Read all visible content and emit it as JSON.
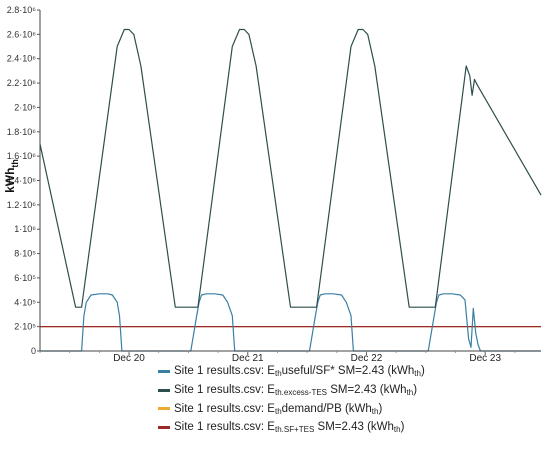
{
  "chart_data": {
    "type": "line",
    "ylabel": "kWh",
    "ylabel_sub": "th",
    "y_ticks": [
      {
        "v": 0,
        "label": "0"
      },
      {
        "v": 200000,
        "label": "2·10⁵"
      },
      {
        "v": 400000,
        "label": "4·10⁵"
      },
      {
        "v": 600000,
        "label": "6·10⁵"
      },
      {
        "v": 800000,
        "label": "8·10⁵"
      },
      {
        "v": 1000000,
        "label": "1·10⁶"
      },
      {
        "v": 1200000,
        "label": "1.2·10⁶"
      },
      {
        "v": 1400000,
        "label": "1.4·10⁶"
      },
      {
        "v": 1600000,
        "label": "1.6·10⁶"
      },
      {
        "v": 1800000,
        "label": "1.8·10⁶"
      },
      {
        "v": 2000000,
        "label": "2·10⁶"
      },
      {
        "v": 2200000,
        "label": "2.2·10⁶"
      },
      {
        "v": 2400000,
        "label": "2.4·10⁶"
      },
      {
        "v": 2600000,
        "label": "2.6·10⁶"
      },
      {
        "v": 2800000,
        "label": "2.8·10⁶"
      }
    ],
    "ylim": [
      0,
      2800000
    ],
    "x_ticks": [
      {
        "x": 20,
        "label": "Dec 20"
      },
      {
        "x": 21,
        "label": "Dec 21"
      },
      {
        "x": 22,
        "label": "Dec 22"
      },
      {
        "x": 23,
        "label": "Dec 23"
      }
    ],
    "xlim": [
      19.25,
      23.47
    ],
    "series": [
      {
        "legend": [
          {
            "t": "Site 1 results.csv: E"
          },
          {
            "t": "th",
            "sub": true
          },
          {
            "t": "useful/SF* SM=2.43   (kWh"
          },
          {
            "t": "th",
            "sub": true
          },
          {
            "t": ")"
          }
        ],
        "color": "#3a7fa3",
        "x": [
          19.25,
          19.6,
          19.62,
          19.64,
          19.68,
          19.75,
          19.82,
          19.86,
          19.9,
          19.92,
          19.94,
          19.96,
          20.3,
          20.52,
          20.57,
          20.59,
          20.61,
          20.65,
          20.72,
          20.79,
          20.83,
          20.87,
          20.89,
          20.91,
          20.93,
          21.3,
          21.52,
          21.57,
          21.59,
          21.61,
          21.65,
          21.72,
          21.79,
          21.83,
          21.87,
          21.89,
          21.91,
          21.93,
          22.3,
          22.52,
          22.57,
          22.59,
          22.61,
          22.65,
          22.72,
          22.79,
          22.83,
          22.86,
          22.88,
          22.9,
          22.92,
          22.94,
          22.96,
          22.98,
          23.47
        ],
        "y": [
          0,
          0,
          290000,
          400000,
          460000,
          470000,
          470000,
          460000,
          400000,
          290000,
          0,
          0,
          0,
          0,
          290000,
          400000,
          460000,
          470000,
          470000,
          460000,
          400000,
          290000,
          0,
          0,
          0,
          0,
          0,
          290000,
          400000,
          460000,
          470000,
          470000,
          460000,
          400000,
          290000,
          0,
          0,
          0,
          0,
          0,
          290000,
          400000,
          460000,
          470000,
          470000,
          460000,
          420000,
          100000,
          30000,
          350000,
          150000,
          50000,
          0,
          0,
          0
        ]
      },
      {
        "legend": [
          {
            "t": "Site 1 results.csv: E"
          },
          {
            "t": "th.excess-TES",
            "sub": true
          },
          {
            "t": " SM=2.43 (kWh"
          },
          {
            "t": "th",
            "sub": true
          },
          {
            "t": ")"
          }
        ],
        "color": "#2d4f4c",
        "x": [
          19.25,
          19.55,
          19.6,
          19.9,
          19.96,
          20.0,
          20.04,
          20.1,
          20.39,
          20.53,
          20.58,
          20.87,
          20.93,
          20.97,
          21.01,
          21.07,
          21.36,
          21.53,
          21.58,
          21.87,
          21.93,
          21.97,
          22.01,
          22.07,
          22.36,
          22.53,
          22.58,
          22.84,
          22.87,
          22.89,
          22.91,
          22.93,
          23.47
        ],
        "y": [
          1700000,
          360000,
          360000,
          2500000,
          2640000,
          2640000,
          2600000,
          2340000,
          360000,
          360000,
          360000,
          2500000,
          2640000,
          2640000,
          2600000,
          2340000,
          360000,
          360000,
          360000,
          2500000,
          2640000,
          2640000,
          2600000,
          2340000,
          360000,
          360000,
          360000,
          2340000,
          2260000,
          2100000,
          2230000,
          2190000,
          1280000
        ]
      },
      {
        "legend": [
          {
            "t": "Site 1 results.csv: E"
          },
          {
            "t": "th",
            "sub": true
          },
          {
            "t": "demand/PB (kWh"
          },
          {
            "t": "th",
            "sub": true
          },
          {
            "t": ")"
          }
        ],
        "color": "#f0a830",
        "x": [
          19.25,
          23.47
        ],
        "y": [
          200000,
          200000
        ]
      },
      {
        "legend": [
          {
            "t": "Site 1 results.csv: E"
          },
          {
            "t": "th.SF+TES",
            "sub": true
          },
          {
            "t": " SM=2.43 (kWh"
          },
          {
            "t": "th",
            "sub": true
          },
          {
            "t": ")"
          }
        ],
        "color": "#9a2a2a",
        "x": [
          19.25,
          23.47
        ],
        "y": [
          200000,
          200000
        ]
      }
    ]
  }
}
